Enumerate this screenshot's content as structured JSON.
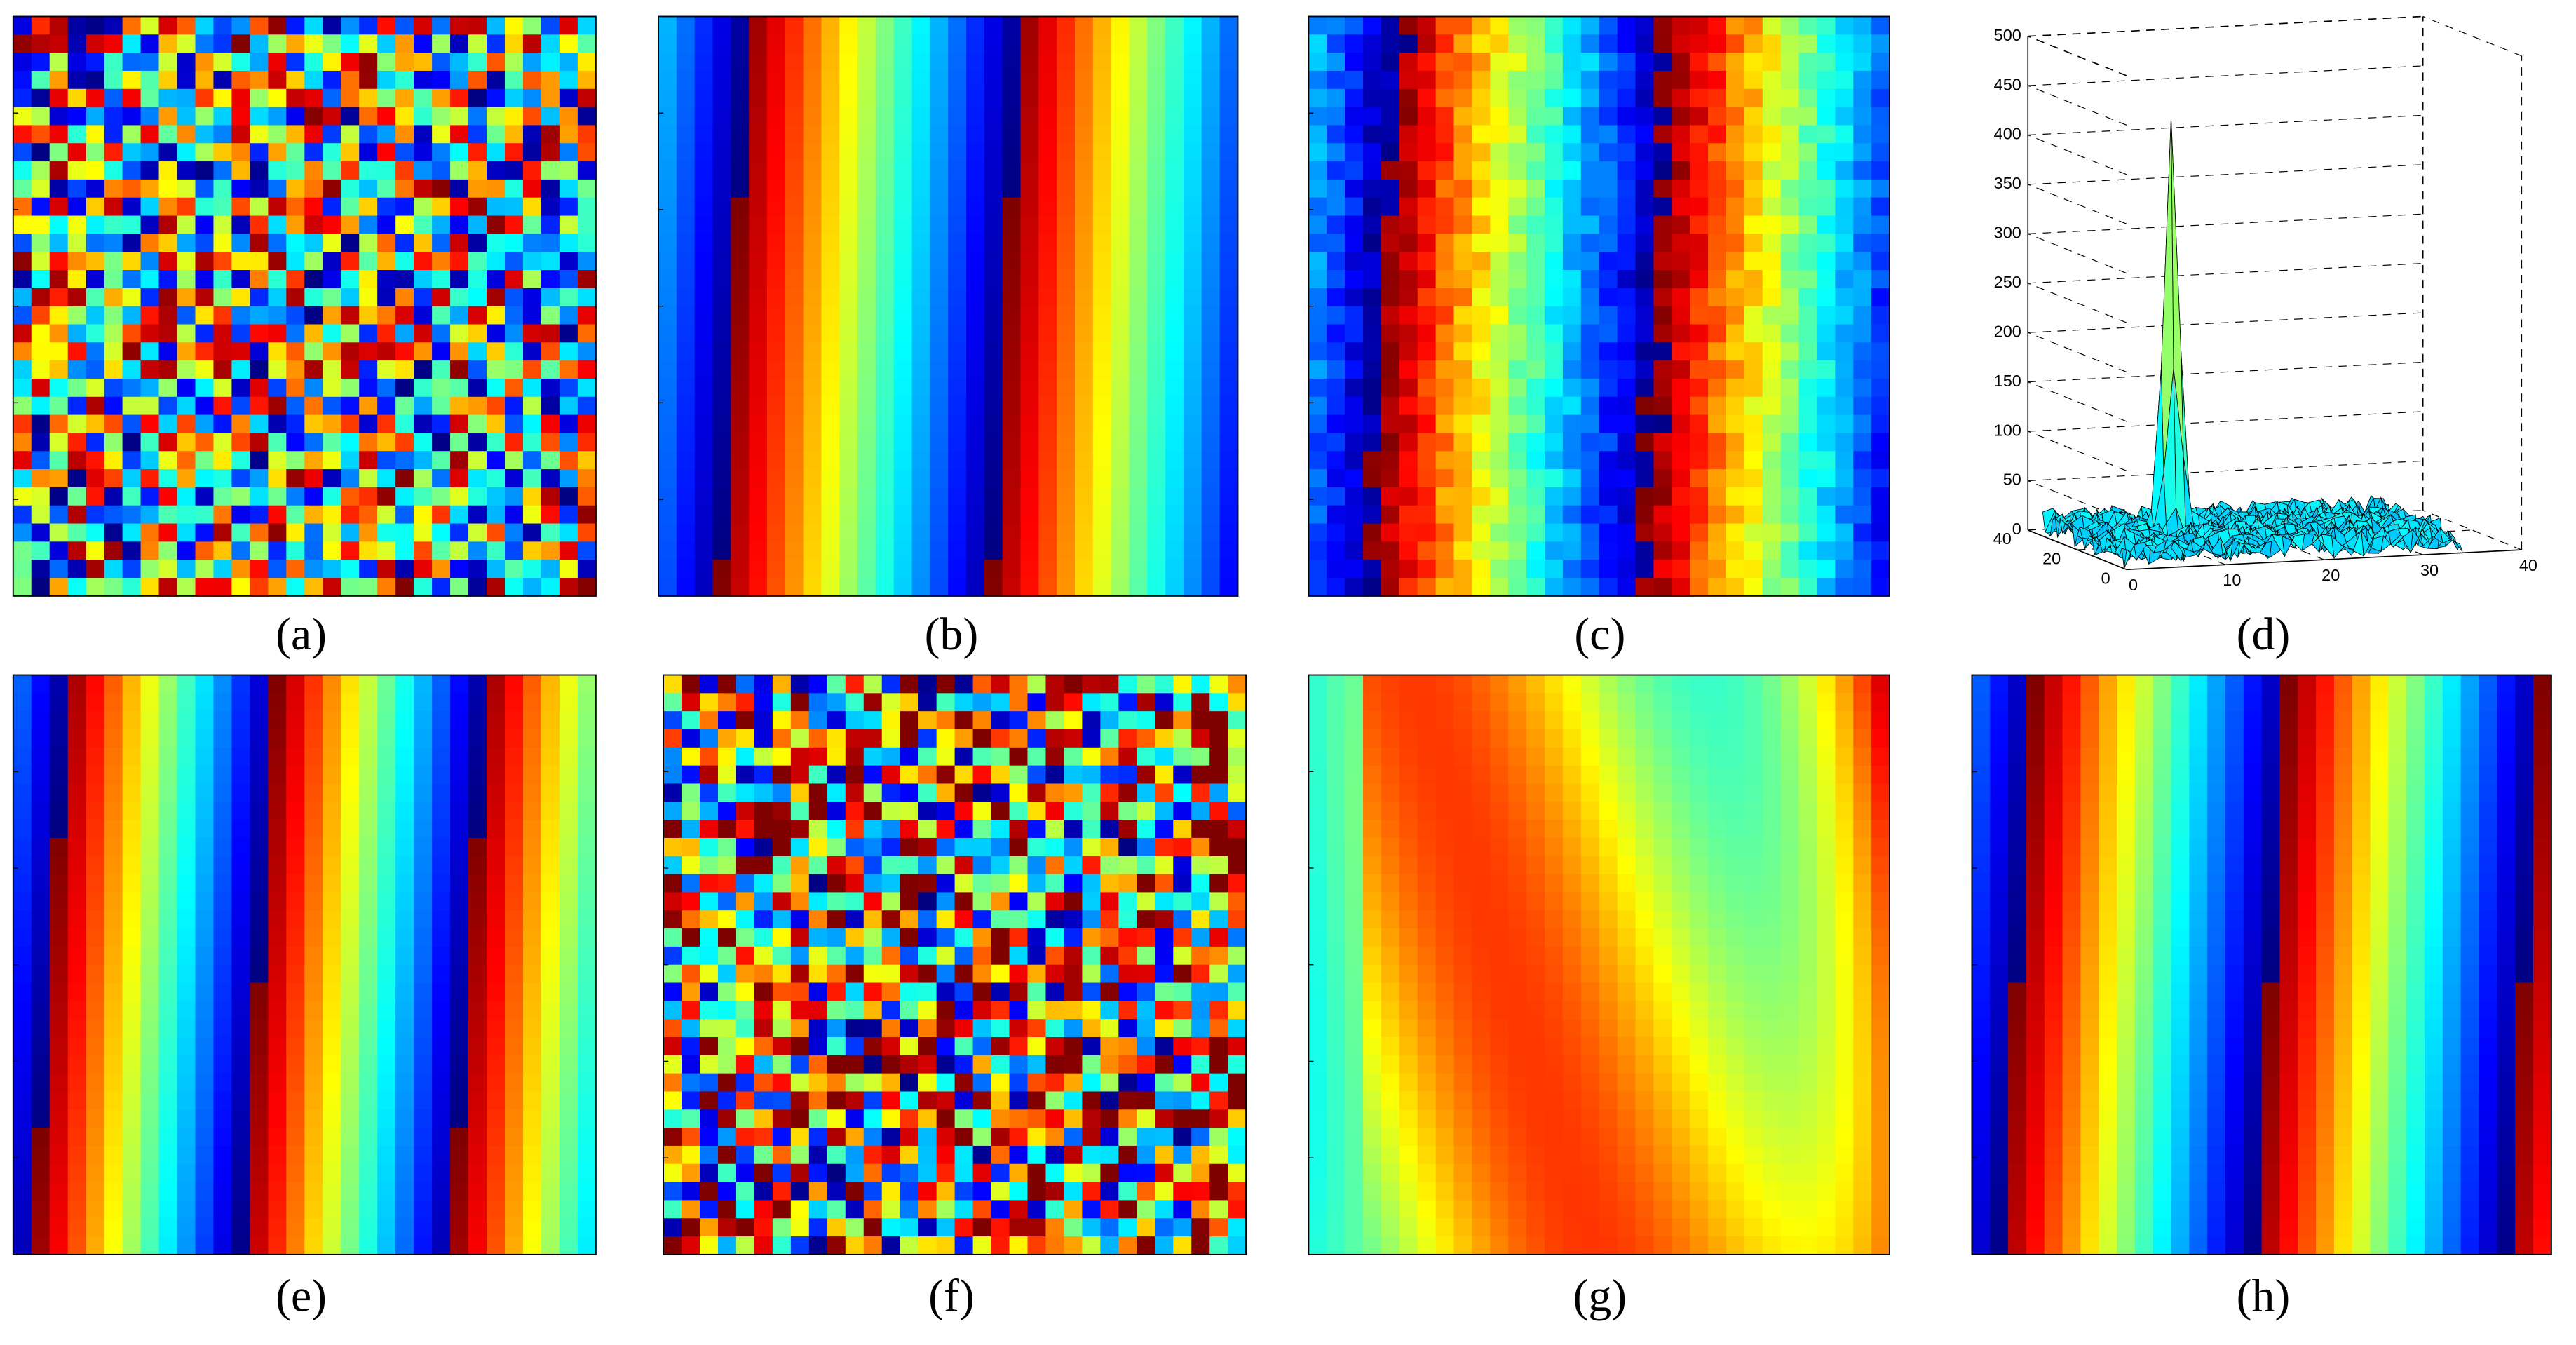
{
  "figure": {
    "panel_labels": [
      "(a)",
      "(b)",
      "(c)",
      "(d)",
      "(e)",
      "(f)",
      "(g)",
      "(h)"
    ]
  },
  "chart_data": {
    "type": "surface",
    "xlim": [
      0,
      40
    ],
    "xticks": [
      0,
      10,
      20,
      30,
      40
    ],
    "ylim": [
      0,
      40
    ],
    "yticks": [
      0,
      20,
      40
    ],
    "zlim": [
      0,
      500
    ],
    "zticks": [
      0,
      50,
      100,
      150,
      200,
      250,
      300,
      350,
      400,
      450,
      500
    ],
    "peak": {
      "x": 10,
      "y": 22,
      "z": 430
    }
  }
}
